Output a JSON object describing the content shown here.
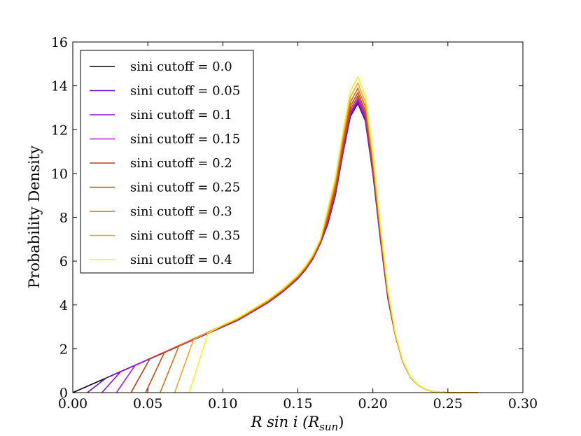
{
  "chart_data": {
    "type": "line",
    "title": "",
    "xlabel": "R sin i (R_sun)",
    "xlabel_parts": {
      "main": "R sin i (R",
      "sub": "sun",
      "close": ")"
    },
    "ylabel": "Probability Density",
    "xlim": [
      0.0,
      0.3
    ],
    "ylim": [
      0,
      16
    ],
    "xticks": [
      "0.00",
      "0.05",
      "0.10",
      "0.15",
      "0.20",
      "0.25",
      "0.30"
    ],
    "yticks": [
      "0",
      "2",
      "4",
      "6",
      "8",
      "10",
      "12",
      "14",
      "16"
    ],
    "grid": false,
    "legend_position": "top-left",
    "x": [
      0.0,
      0.01,
      0.02,
      0.03,
      0.04,
      0.05,
      0.06,
      0.07,
      0.08,
      0.09,
      0.1,
      0.11,
      0.12,
      0.13,
      0.14,
      0.15,
      0.155,
      0.16,
      0.165,
      0.17,
      0.175,
      0.18,
      0.185,
      0.19,
      0.195,
      0.2,
      0.205,
      0.21,
      0.215,
      0.22,
      0.225,
      0.23,
      0.235,
      0.24,
      0.245,
      0.25,
      0.26,
      0.27
    ],
    "base_values": [
      0.0,
      0.3,
      0.6,
      0.9,
      1.2,
      1.5,
      1.8,
      2.1,
      2.4,
      2.7,
      3.0,
      3.3,
      3.7,
      4.1,
      4.6,
      5.2,
      5.6,
      6.1,
      6.8,
      7.7,
      9.0,
      10.9,
      12.6,
      13.2,
      12.4,
      10.0,
      7.0,
      4.3,
      2.6,
      1.4,
      0.7,
      0.35,
      0.15,
      0.05,
      0.02,
      0.0,
      0.0,
      0.0
    ],
    "series": [
      {
        "name": "sini cutoff = 0.0",
        "color": "#000000",
        "cutoff_x": 0.0,
        "scale": 1.0
      },
      {
        "name": "sini cutoff = 0.05",
        "color": "#5c0ecb",
        "cutoff_x": 0.0097,
        "scale": 1.003
      },
      {
        "name": "sini cutoff = 0.1",
        "color": "#8a10e8",
        "cutoff_x": 0.0194,
        "scale": 1.008
      },
      {
        "name": "sini cutoff = 0.15",
        "color": "#a61fd6",
        "cutoff_x": 0.0291,
        "scale": 1.015
      },
      {
        "name": "sini cutoff = 0.2",
        "color": "#c03a16",
        "cutoff_x": 0.0388,
        "scale": 1.025
      },
      {
        "name": "sini cutoff = 0.25",
        "color": "#cc4a16",
        "cutoff_x": 0.0485,
        "scale": 1.037
      },
      {
        "name": "sini cutoff = 0.3",
        "color": "#d86e10",
        "cutoff_x": 0.0582,
        "scale": 1.052
      },
      {
        "name": "sini cutoff = 0.35",
        "color": "#f0a820",
        "cutoff_x": 0.0679,
        "scale": 1.07
      },
      {
        "name": "sini cutoff = 0.4",
        "color": "#f8f020",
        "cutoff_x": 0.0776,
        "scale": 1.092
      }
    ]
  }
}
